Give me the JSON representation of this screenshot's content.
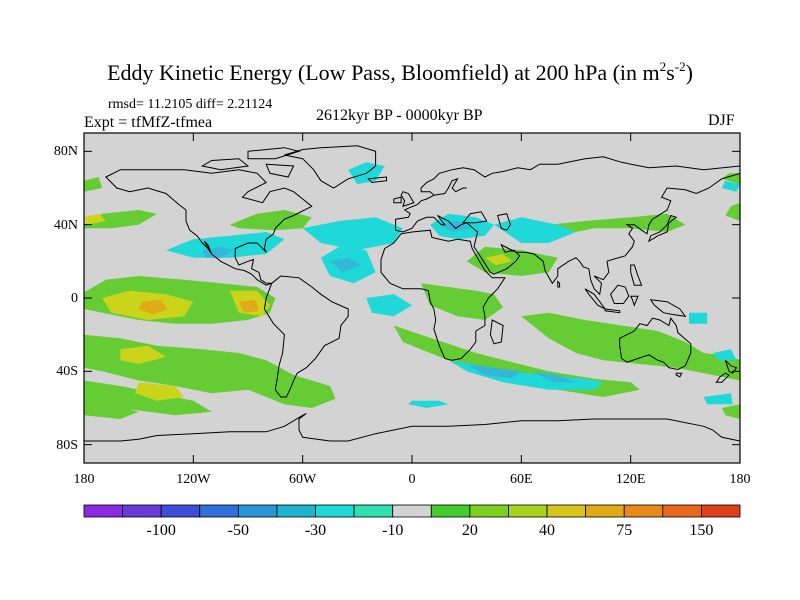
{
  "title": {
    "main": "Eddy Kinetic Energy (Low Pass, Bloomfield) at 200 hPa (in m",
    "sup1": "2",
    "mid": "s",
    "sup2": "-2",
    "end": ")"
  },
  "stats": "rmsd= 11.2105  diff= 2.21124",
  "experiment": "Expt = tfMfZ-tfmea",
  "period": "2612kyr BP - 0000kyr BP",
  "season": "DJF",
  "map": {
    "projection": "cylindrical equidistant",
    "lon_range": [
      -180,
      180
    ],
    "lat_range": [
      -90,
      90
    ],
    "background_color": "#d3d3d3",
    "lat_ticks": [
      {
        "lat": 80,
        "label": "80N"
      },
      {
        "lat": 40,
        "label": "40N"
      },
      {
        "lat": 0,
        "label": "0"
      },
      {
        "lat": -40,
        "label": "40S"
      },
      {
        "lat": -80,
        "label": "80S"
      }
    ],
    "lon_ticks": [
      {
        "lon": -180,
        "label": "180"
      },
      {
        "lon": -120,
        "label": "120W"
      },
      {
        "lon": -60,
        "label": "60W"
      },
      {
        "lon": 0,
        "label": "0"
      },
      {
        "lon": 60,
        "label": "60E"
      },
      {
        "lon": 120,
        "label": "120E"
      },
      {
        "lon": 180,
        "label": "180"
      }
    ]
  },
  "colorbar": {
    "colors": [
      "#8a2be2",
      "#6a3ad8",
      "#3f4ed8",
      "#2f6fd8",
      "#2a94d8",
      "#1db4d0",
      "#1fd8d8",
      "#30e0b0",
      "#d3d3d3",
      "#44cc2a",
      "#7dd01f",
      "#a6d41a",
      "#d6c51a",
      "#e0aa18",
      "#e88a1a",
      "#e8681c",
      "#e04018"
    ],
    "labels": [
      "-100",
      "-50",
      "-30",
      "-10",
      "20",
      "40",
      "75",
      "150"
    ]
  },
  "fields": [
    {
      "name": "green",
      "color": "#66cc33",
      "polys": [
        [
          [
            -180,
            3
          ],
          [
            -168,
            10
          ],
          [
            -150,
            12
          ],
          [
            -125,
            10
          ],
          [
            -105,
            8
          ],
          [
            -85,
            6
          ],
          [
            -75,
            0
          ],
          [
            -78,
            -8
          ],
          [
            -90,
            -12
          ],
          [
            -110,
            -14
          ],
          [
            -130,
            -14
          ],
          [
            -150,
            -12
          ],
          [
            -170,
            -8
          ],
          [
            -180,
            -6
          ]
        ],
        [
          [
            -180,
            -20
          ],
          [
            -160,
            -22
          ],
          [
            -140,
            -26
          ],
          [
            -115,
            -28
          ],
          [
            -95,
            -30
          ],
          [
            -80,
            -34
          ],
          [
            -65,
            -42
          ],
          [
            -45,
            -48
          ],
          [
            -42,
            -55
          ],
          [
            -55,
            -60
          ],
          [
            -70,
            -58
          ],
          [
            -90,
            -50
          ],
          [
            -110,
            -52
          ],
          [
            -130,
            -48
          ],
          [
            -150,
            -45
          ],
          [
            -170,
            -40
          ],
          [
            -180,
            -38
          ]
        ],
        [
          [
            -180,
            -45
          ],
          [
            -160,
            -48
          ],
          [
            -140,
            -52
          ],
          [
            -120,
            -56
          ],
          [
            -110,
            -62
          ],
          [
            -130,
            -64
          ],
          [
            -160,
            -60
          ],
          [
            -180,
            -56
          ]
        ],
        [
          [
            -180,
            40
          ],
          [
            -170,
            46
          ],
          [
            -150,
            48
          ],
          [
            -140,
            46
          ],
          [
            -150,
            40
          ],
          [
            -165,
            38
          ],
          [
            -180,
            38
          ]
        ],
        [
          [
            -100,
            40
          ],
          [
            -85,
            46
          ],
          [
            -70,
            48
          ],
          [
            -55,
            44
          ],
          [
            -60,
            38
          ],
          [
            -75,
            37
          ],
          [
            -95,
            38
          ]
        ],
        [
          [
            -180,
            64
          ],
          [
            -172,
            66
          ],
          [
            -170,
            60
          ],
          [
            -180,
            58
          ]
        ],
        [
          [
            30,
            20
          ],
          [
            40,
            28
          ],
          [
            60,
            26
          ],
          [
            80,
            22
          ],
          [
            75,
            14
          ],
          [
            60,
            12
          ],
          [
            40,
            14
          ]
        ],
        [
          [
            60,
            -10
          ],
          [
            75,
            -8
          ],
          [
            95,
            -12
          ],
          [
            115,
            -15
          ],
          [
            135,
            -18
          ],
          [
            150,
            -24
          ],
          [
            160,
            -30
          ],
          [
            175,
            -32
          ],
          [
            180,
            -34
          ],
          [
            180,
            -45
          ],
          [
            165,
            -42
          ],
          [
            145,
            -38
          ],
          [
            125,
            -36
          ],
          [
            105,
            -34
          ],
          [
            90,
            -30
          ],
          [
            75,
            -22
          ]
        ],
        [
          [
            5,
            8
          ],
          [
            20,
            6
          ],
          [
            35,
            4
          ],
          [
            45,
            2
          ],
          [
            50,
            -5
          ],
          [
            40,
            -12
          ],
          [
            25,
            -10
          ],
          [
            10,
            -4
          ]
        ],
        [
          [
            -10,
            -15
          ],
          [
            5,
            -20
          ],
          [
            20,
            -25
          ],
          [
            35,
            -30
          ],
          [
            55,
            -35
          ],
          [
            75,
            -40
          ],
          [
            100,
            -44
          ],
          [
            120,
            -46
          ],
          [
            125,
            -50
          ],
          [
            105,
            -54
          ],
          [
            80,
            -50
          ],
          [
            55,
            -45
          ],
          [
            30,
            -38
          ],
          [
            10,
            -30
          ],
          [
            -5,
            -24
          ]
        ],
        [
          [
            60,
            32
          ],
          [
            80,
            34
          ],
          [
            100,
            38
          ],
          [
            120,
            38
          ],
          [
            140,
            36
          ],
          [
            150,
            40
          ],
          [
            140,
            46
          ],
          [
            120,
            44
          ],
          [
            95,
            42
          ],
          [
            75,
            40
          ]
        ],
        [
          [
            -180,
            -55
          ],
          [
            -165,
            -58
          ],
          [
            -150,
            -62
          ],
          [
            -160,
            -66
          ],
          [
            -180,
            -64
          ]
        ],
        [
          [
            170,
            -60
          ],
          [
            180,
            -58
          ],
          [
            180,
            -66
          ],
          [
            172,
            -64
          ]
        ],
        [
          [
            172,
            45
          ],
          [
            180,
            42
          ],
          [
            180,
            52
          ],
          [
            175,
            50
          ]
        ],
        [
          [
            170,
            65
          ],
          [
            180,
            62
          ],
          [
            180,
            68
          ],
          [
            174,
            68
          ]
        ]
      ]
    },
    {
      "name": "cyan",
      "color": "#1fd8d8",
      "polys": [
        [
          [
            -135,
            26
          ],
          [
            -120,
            32
          ],
          [
            -100,
            34
          ],
          [
            -80,
            36
          ],
          [
            -70,
            32
          ],
          [
            -80,
            24
          ],
          [
            -100,
            22
          ],
          [
            -120,
            22
          ]
        ],
        [
          [
            -60,
            38
          ],
          [
            -40,
            42
          ],
          [
            -20,
            44
          ],
          [
            -5,
            38
          ],
          [
            -10,
            30
          ],
          [
            -30,
            26
          ],
          [
            -50,
            30
          ]
        ],
        [
          [
            -35,
            70
          ],
          [
            -25,
            74
          ],
          [
            -15,
            72
          ],
          [
            -20,
            64
          ],
          [
            -30,
            62
          ]
        ],
        [
          [
            -50,
            22
          ],
          [
            -40,
            28
          ],
          [
            -25,
            26
          ],
          [
            -20,
            14
          ],
          [
            -32,
            8
          ],
          [
            -45,
            12
          ]
        ],
        [
          [
            -25,
            0
          ],
          [
            -10,
            2
          ],
          [
            0,
            -4
          ],
          [
            -10,
            -10
          ],
          [
            -22,
            -8
          ]
        ],
        [
          [
            10,
            40
          ],
          [
            20,
            46
          ],
          [
            35,
            44
          ],
          [
            45,
            40
          ],
          [
            40,
            34
          ],
          [
            25,
            32
          ],
          [
            15,
            34
          ]
        ],
        [
          [
            45,
            40
          ],
          [
            60,
            44
          ],
          [
            80,
            40
          ],
          [
            90,
            36
          ],
          [
            75,
            30
          ],
          [
            60,
            30
          ]
        ],
        [
          [
            20,
            -34
          ],
          [
            45,
            -38
          ],
          [
            70,
            -42
          ],
          [
            95,
            -44
          ],
          [
            105,
            -46
          ],
          [
            100,
            -50
          ],
          [
            75,
            -50
          ],
          [
            50,
            -46
          ],
          [
            30,
            -40
          ]
        ],
        [
          [
            0,
            -56
          ],
          [
            15,
            -56
          ],
          [
            20,
            -58
          ],
          [
            8,
            -60
          ],
          [
            -2,
            -58
          ]
        ],
        [
          [
            152,
            -8
          ],
          [
            162,
            -8
          ],
          [
            162,
            -14
          ],
          [
            152,
            -14
          ]
        ],
        [
          [
            165,
            -30
          ],
          [
            175,
            -28
          ],
          [
            178,
            -34
          ],
          [
            168,
            -34
          ]
        ],
        [
          [
            160,
            -54
          ],
          [
            175,
            -52
          ],
          [
            176,
            -58
          ],
          [
            162,
            -58
          ]
        ],
        [
          [
            170,
            60
          ],
          [
            178,
            58
          ],
          [
            180,
            62
          ],
          [
            172,
            64
          ]
        ]
      ]
    },
    {
      "name": "blue",
      "color": "#33b8d8",
      "polys": [
        [
          [
            -115,
            26
          ],
          [
            -105,
            28
          ],
          [
            -98,
            26
          ],
          [
            -105,
            22
          ],
          [
            -113,
            22
          ]
        ],
        [
          [
            -45,
            20
          ],
          [
            -35,
            22
          ],
          [
            -28,
            18
          ],
          [
            -38,
            14
          ]
        ],
        [
          [
            15,
            40
          ],
          [
            25,
            42
          ],
          [
            32,
            38
          ],
          [
            22,
            36
          ]
        ],
        [
          [
            30,
            -36
          ],
          [
            45,
            -38
          ],
          [
            60,
            -40
          ],
          [
            55,
            -44
          ],
          [
            40,
            -42
          ]
        ],
        [
          [
            65,
            -40
          ],
          [
            80,
            -42
          ],
          [
            90,
            -46
          ],
          [
            78,
            -46
          ]
        ]
      ]
    },
    {
      "name": "yellow",
      "color": "#c9d41a",
      "polys": [
        [
          [
            -170,
            0
          ],
          [
            -155,
            4
          ],
          [
            -135,
            2
          ],
          [
            -120,
            -2
          ],
          [
            -125,
            -10
          ],
          [
            -145,
            -12
          ],
          [
            -165,
            -8
          ]
        ],
        [
          [
            -100,
            4
          ],
          [
            -85,
            4
          ],
          [
            -78,
            -4
          ],
          [
            -82,
            -10
          ],
          [
            -95,
            -8
          ]
        ],
        [
          [
            -160,
            -28
          ],
          [
            -145,
            -26
          ],
          [
            -135,
            -32
          ],
          [
            -150,
            -36
          ],
          [
            -160,
            -34
          ]
        ],
        [
          [
            -150,
            -46
          ],
          [
            -130,
            -48
          ],
          [
            -125,
            -54
          ],
          [
            -140,
            -56
          ],
          [
            -152,
            -52
          ]
        ],
        [
          [
            -180,
            44
          ],
          [
            -172,
            46
          ],
          [
            -168,
            42
          ],
          [
            -178,
            40
          ]
        ],
        [
          [
            40,
            22
          ],
          [
            50,
            24
          ],
          [
            55,
            20
          ],
          [
            46,
            18
          ]
        ]
      ]
    },
    {
      "name": "orange",
      "color": "#e0aa18",
      "polys": [
        [
          [
            -148,
            -2
          ],
          [
            -138,
            -1
          ],
          [
            -134,
            -6
          ],
          [
            -142,
            -9
          ],
          [
            -150,
            -6
          ]
        ],
        [
          [
            -95,
            -2
          ],
          [
            -86,
            -1
          ],
          [
            -84,
            -7
          ],
          [
            -92,
            -8
          ]
        ]
      ]
    }
  ]
}
